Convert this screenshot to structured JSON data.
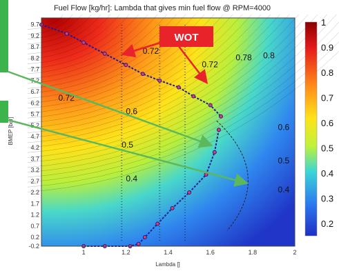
{
  "chart_data": {
    "type": "heatmap",
    "title": "Fuel Flow [kg/hr]: Lambda that gives min fuel flow @ RPM=4000",
    "xlabel": "Lambda []",
    "ylabel": "BMEP [bar]",
    "x_ticks": [
      "1",
      "1.2",
      "1.4",
      "1.6",
      "1.8",
      "2"
    ],
    "xlim": [
      0.8,
      2.0
    ],
    "ylim": [
      -0.2,
      10.0
    ],
    "y_ticks": [
      -0.2,
      0.2,
      0.7,
      1.2,
      1.7,
      2.2,
      2.7,
      3.2,
      3.7,
      4.2,
      4.7,
      5.2,
      5.7,
      6.2,
      6.7,
      7.2,
      7.7,
      8.2,
      8.7,
      9.2,
      9.7
    ],
    "colorbar": {
      "min": 0.15,
      "max": 1.0,
      "ticks": [
        "1",
        "0.9",
        "0.8",
        "0.7",
        "0.6",
        "0.5",
        "0.4",
        "0.3",
        "0.2"
      ]
    },
    "contour_labels": [
      {
        "text": "0.72",
        "x": 1.28,
        "y": 8.4
      },
      {
        "text": "0.72",
        "x": 1.56,
        "y": 7.8
      },
      {
        "text": "0.78",
        "x": 1.72,
        "y": 8.1
      },
      {
        "text": "0.8",
        "x": 1.85,
        "y": 8.2
      },
      {
        "text": "0.72",
        "x": 0.88,
        "y": 6.3
      },
      {
        "text": "0.6",
        "x": 1.2,
        "y": 5.7
      },
      {
        "text": "0.6",
        "x": 1.92,
        "y": 5.0
      },
      {
        "text": "0.5",
        "x": 1.18,
        "y": 4.2
      },
      {
        "text": "0.5",
        "x": 1.92,
        "y": 3.5
      },
      {
        "text": "0.4",
        "x": 1.2,
        "y": 2.7
      },
      {
        "text": "0.4",
        "x": 1.92,
        "y": 2.2
      }
    ],
    "series": [
      {
        "x": [
          0.8,
          0.92,
          1.0,
          1.1,
          1.2,
          1.28,
          1.36,
          1.45,
          1.52,
          1.6,
          1.65
        ],
        "y": [
          9.7,
          9.3,
          8.9,
          8.4,
          7.9,
          7.5,
          7.2,
          6.9,
          6.5,
          6.1,
          5.6
        ]
      },
      {
        "x": [
          1.64,
          1.62,
          1.58,
          1.5,
          1.42,
          1.35,
          1.29,
          1.26,
          1.22,
          1.1,
          1.0
        ],
        "y": [
          5.0,
          4.0,
          3.0,
          2.2,
          1.5,
          0.8,
          0.2,
          -0.1,
          -0.2,
          -0.2,
          -0.2
        ]
      }
    ],
    "annotations": [
      {
        "text": "WOT"
      }
    ]
  },
  "colors": {
    "arrow_red": "#e8232a",
    "arrow_green": "#5cb85c",
    "side_box": "#3cb44b",
    "series_line": "#1a1aa0",
    "series_marker": "#e0405a"
  }
}
